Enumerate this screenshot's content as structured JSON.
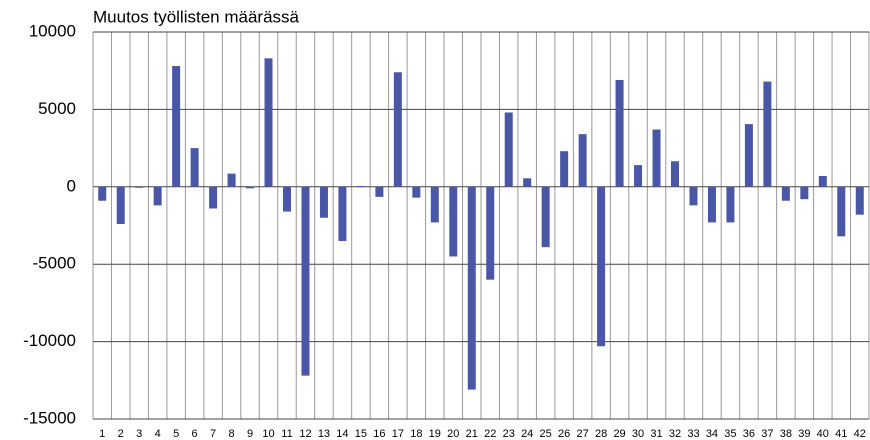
{
  "chart_data": {
    "type": "bar",
    "title": "Muutos työllisten määrässä",
    "categories": [
      "1",
      "2",
      "3",
      "4",
      "5",
      "6",
      "7",
      "8",
      "9",
      "10",
      "11",
      "12",
      "13",
      "14",
      "15",
      "16",
      "17",
      "18",
      "19",
      "20",
      "21",
      "22",
      "23",
      "24",
      "25",
      "26",
      "27",
      "28",
      "29",
      "30",
      "31",
      "32",
      "33",
      "34",
      "35",
      "36",
      "37",
      "38",
      "39",
      "40",
      "41",
      "42"
    ],
    "values": [
      -900,
      -2400,
      -50,
      -1200,
      7800,
      2500,
      -1400,
      850,
      -100,
      8300,
      -1600,
      -12200,
      -2000,
      -3500,
      50,
      -650,
      7400,
      -700,
      -2300,
      -4500,
      -13100,
      -6000,
      4800,
      550,
      -3900,
      2300,
      3400,
      -10300,
      6900,
      1400,
      3700,
      1650,
      -1200,
      -2300,
      -2300,
      4050,
      6800,
      -900,
      -800,
      700,
      -3200,
      -1800
    ],
    "color": "#4a57a6",
    "ylim": [
      -15000,
      10000
    ],
    "yticks": [
      -15000,
      -10000,
      -5000,
      0,
      5000,
      10000
    ],
    "grid": true
  }
}
